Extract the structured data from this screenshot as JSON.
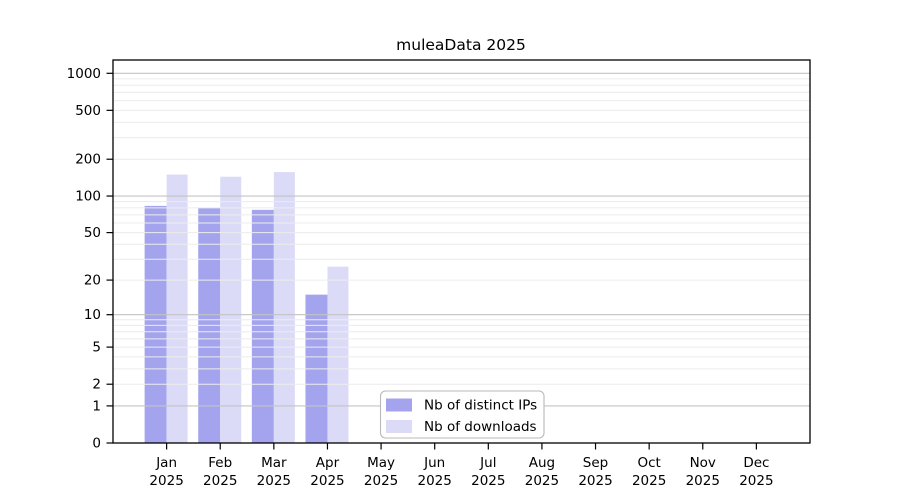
{
  "title": "muleaData 2025",
  "chart_data": {
    "type": "bar",
    "title": "muleaData 2025",
    "categories": [
      "Jan",
      "Feb",
      "Mar",
      "Apr",
      "May",
      "Jun",
      "Jul",
      "Aug",
      "Sep",
      "Oct",
      "Nov",
      "Dec"
    ],
    "category_year": "2025",
    "series": [
      {
        "name": "Nb of distinct IPs",
        "color": "#a4a4ee",
        "values": [
          83,
          80,
          77,
          15,
          0,
          0,
          0,
          0,
          0,
          0,
          0,
          0
        ]
      },
      {
        "name": "Nb of downloads",
        "color": "#dbdbf8",
        "values": [
          150,
          144,
          157,
          26,
          0,
          0,
          0,
          0,
          0,
          0,
          0,
          0
        ]
      }
    ],
    "xlabel": "",
    "ylabel": "",
    "y_scale": "log1p",
    "y_ticks": [
      0,
      1,
      2,
      5,
      10,
      20,
      50,
      100,
      200,
      500,
      1000
    ],
    "y_minor_grid": [
      2,
      3,
      4,
      5,
      6,
      7,
      8,
      9,
      20,
      30,
      40,
      50,
      60,
      70,
      80,
      90,
      200,
      300,
      400,
      500,
      600,
      700,
      800,
      900
    ],
    "y_major_grid": [
      1,
      10,
      100,
      1000
    ],
    "ylim": [
      0,
      1290
    ],
    "grid": true,
    "legend": {
      "entries": [
        "Nb of distinct IPs",
        "Nb of downloads"
      ],
      "position": "lower-center"
    }
  },
  "colors": {
    "background": "#ffffff",
    "bar_ips": "#a4a4ee",
    "bar_downloads": "#dbdbf8",
    "major_grid": "#c3c3c3",
    "minor_grid": "#ececec",
    "axis": "#000000",
    "legend_border": "#b9b9b9",
    "legend_fill": "#ffffff"
  }
}
